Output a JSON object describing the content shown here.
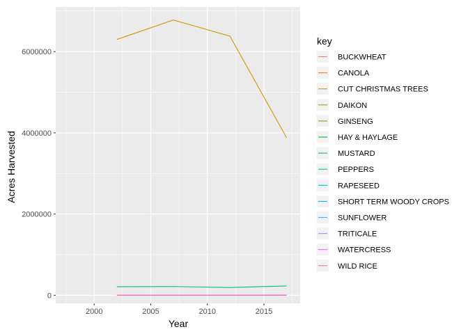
{
  "chart_data": {
    "type": "line",
    "xlabel": "Year",
    "ylabel": "Acres Harvested",
    "xlim": [
      1996.6,
      2018.2
    ],
    "ylim": [
      -200000,
      7100000
    ],
    "x_ticks": [
      2000,
      2005,
      2010,
      2015
    ],
    "x_minor_ticks": [
      1997.5,
      2002.5,
      2007.5,
      2012.5,
      2017.5
    ],
    "y_ticks": [
      0,
      2000000,
      4000000,
      6000000
    ],
    "y_tick_labels": [
      "0",
      "2000000",
      "4000000",
      "6000000"
    ],
    "y_minor_ticks": [
      1000000,
      3000000,
      5000000,
      7000000
    ],
    "grid": true,
    "legend": {
      "title": "key",
      "position": "right"
    },
    "series": [
      {
        "name": "BUCKWHEAT",
        "color": "#F8766D",
        "x": [],
        "y": []
      },
      {
        "name": "CANOLA",
        "color": "#E58700",
        "x": [],
        "y": []
      },
      {
        "name": "CUT CHRISTMAS TREES",
        "color": "#C99800",
        "x": [
          2002,
          2007,
          2012,
          2017
        ],
        "y": [
          6300000,
          6780000,
          6380000,
          3880000
        ]
      },
      {
        "name": "DAIKON",
        "color": "#A3A500",
        "x": [],
        "y": []
      },
      {
        "name": "GINSENG",
        "color": "#6BB100",
        "x": [],
        "y": []
      },
      {
        "name": "HAY & HAYLAGE",
        "color": "#00BA38",
        "x": [],
        "y": []
      },
      {
        "name": "MUSTARD",
        "color": "#00BF7D",
        "x": [
          2002,
          2007,
          2012,
          2017
        ],
        "y": [
          210000,
          215000,
          190000,
          230000
        ]
      },
      {
        "name": "PEPPERS",
        "color": "#00C0AF",
        "x": [],
        "y": []
      },
      {
        "name": "RAPESEED",
        "color": "#00BCD8",
        "x": [],
        "y": []
      },
      {
        "name": "SHORT TERM WOODY CROPS",
        "color": "#00B0F6",
        "x": [],
        "y": []
      },
      {
        "name": "SUNFLOWER",
        "color": "#619CFF",
        "x": [
          2015,
          2017
        ],
        "y": [
          5000,
          5000
        ]
      },
      {
        "name": "TRITICALE",
        "color": "#B983FF",
        "x": [],
        "y": []
      },
      {
        "name": "WATERCRESS",
        "color": "#E76BF3",
        "x": [
          2002,
          2007,
          2012,
          2017
        ],
        "y": [
          2000,
          2000,
          2000,
          2000
        ]
      },
      {
        "name": "WILD RICE",
        "color": "#FF67A4",
        "x": [
          2002,
          2007,
          2012,
          2017
        ],
        "y": [
          1000,
          1000,
          1000,
          1000
        ]
      }
    ]
  }
}
